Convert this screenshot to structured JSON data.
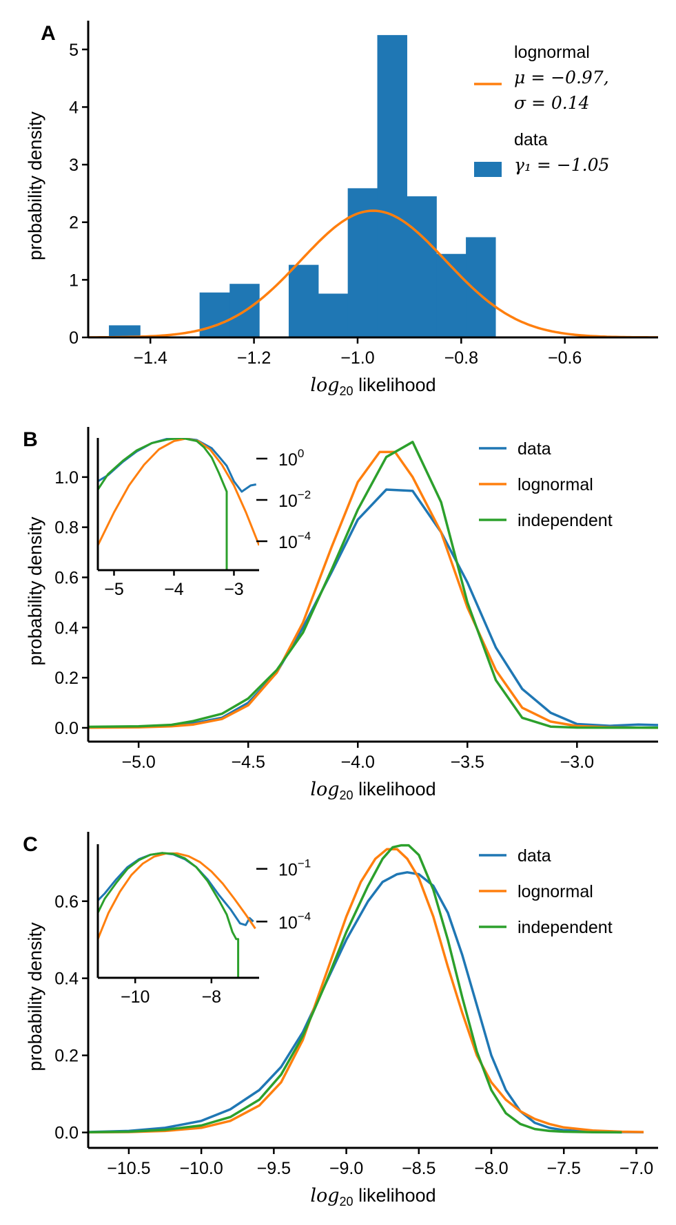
{
  "chart_data": [
    {
      "panel": "A",
      "type": "bar",
      "xlabel_math": "log",
      "xlabel_sub": "20",
      "xlabel_rest": " likelihood",
      "ylabel": "probability density",
      "xlim": [
        -1.52,
        -0.42
      ],
      "ylim": [
        0,
        5.5
      ],
      "xticks": [
        -1.4,
        -1.2,
        -1.0,
        -0.8,
        -0.6
      ],
      "xtick_labels": [
        "−1.4",
        "−1.2",
        "−1.0",
        "−0.8",
        "−0.6"
      ],
      "yticks": [
        0,
        1,
        2,
        3,
        4,
        5
      ],
      "ytick_labels": [
        "0",
        "1",
        "2",
        "3",
        "4",
        "5"
      ],
      "histogram": {
        "name": "data",
        "color": "#1f77b4",
        "bins": [
          {
            "left": -1.48,
            "right": -1.42,
            "value": 0.21
          },
          {
            "left": -1.305,
            "right": -1.247,
            "value": 0.78
          },
          {
            "left": -1.247,
            "right": -1.19,
            "value": 0.93
          },
          {
            "left": -1.133,
            "right": -1.076,
            "value": 1.26
          },
          {
            "left": -1.076,
            "right": -1.019,
            "value": 0.76
          },
          {
            "left": -1.019,
            "right": -0.962,
            "value": 2.59
          },
          {
            "left": -0.962,
            "right": -0.905,
            "value": 5.25
          },
          {
            "left": -0.905,
            "right": -0.848,
            "value": 2.45
          },
          {
            "left": -0.848,
            "right": -0.791,
            "value": 1.45
          },
          {
            "left": -0.791,
            "right": -0.734,
            "value": 1.74
          }
        ]
      },
      "fit": {
        "name": "lognormal",
        "color": "#ff7f0e",
        "mu": -0.97,
        "sigma": 0.14,
        "amplitude": 2.2,
        "x_from": -1.52,
        "x_to": -0.42
      },
      "legend": [
        {
          "kind": "line",
          "color": "#ff7f0e",
          "lines": [
            "lognormal",
            "μ = −0.97,",
            "σ = 0.14"
          ]
        },
        {
          "kind": "patch",
          "color": "#1f77b4",
          "lines": [
            "data",
            "γ₁ = −1.05"
          ]
        }
      ]
    },
    {
      "panel": "B",
      "type": "line",
      "xlabel_math": "log",
      "xlabel_sub": "20",
      "xlabel_rest": " likelihood",
      "ylabel": "probability density",
      "xlim": [
        -5.23,
        -2.63
      ],
      "ylim": [
        -0.055,
        1.2
      ],
      "xticks": [
        -5.0,
        -4.5,
        -4.0,
        -3.5,
        -3.0
      ],
      "xtick_labels": [
        "−5.0",
        "−4.5",
        "−4.0",
        "−3.5",
        "−3.0"
      ],
      "yticks": [
        0.0,
        0.2,
        0.4,
        0.6,
        0.8,
        1.0
      ],
      "ytick_labels": [
        "0.0",
        "0.2",
        "0.4",
        "0.6",
        "0.8",
        "1.0"
      ],
      "series": [
        {
          "name": "data",
          "color": "#1f77b4",
          "x": [
            -5.23,
            -5.0,
            -4.85,
            -4.75,
            -4.62,
            -4.5,
            -4.37,
            -4.25,
            -4.12,
            -4.0,
            -3.87,
            -3.75,
            -3.62,
            -3.5,
            -3.37,
            -3.25,
            -3.12,
            -3.0,
            -2.85,
            -2.72,
            -2.63
          ],
          "y": [
            0.003,
            0.005,
            0.01,
            0.018,
            0.04,
            0.1,
            0.22,
            0.4,
            0.62,
            0.83,
            0.95,
            0.945,
            0.78,
            0.58,
            0.32,
            0.155,
            0.06,
            0.015,
            0.008,
            0.013,
            0.011
          ]
        },
        {
          "name": "lognormal",
          "color": "#ff7f0e",
          "x": [
            -5.23,
            -5.0,
            -4.85,
            -4.75,
            -4.62,
            -4.5,
            -4.37,
            -4.25,
            -4.12,
            -4.0,
            -3.9,
            -3.83,
            -3.75,
            -3.62,
            -3.5,
            -3.37,
            -3.25,
            -3.12,
            -3.0,
            -2.85,
            -2.72,
            -2.63
          ],
          "y": [
            0.0005,
            0.002,
            0.006,
            0.013,
            0.035,
            0.09,
            0.22,
            0.42,
            0.72,
            0.98,
            1.1,
            1.1,
            1.0,
            0.78,
            0.48,
            0.23,
            0.08,
            0.025,
            0.007,
            0.002,
            0.0005,
            0.0003
          ]
        },
        {
          "name": "independent",
          "color": "#2ca02c",
          "x": [
            -5.23,
            -5.0,
            -4.85,
            -4.75,
            -4.62,
            -4.5,
            -4.37,
            -4.25,
            -4.12,
            -4.0,
            -3.87,
            -3.75,
            -3.62,
            -3.5,
            -3.37,
            -3.25,
            -3.12,
            -3.0,
            -2.85,
            -2.72,
            -2.63
          ],
          "y": [
            0.004,
            0.006,
            0.012,
            0.027,
            0.056,
            0.117,
            0.23,
            0.38,
            0.63,
            0.87,
            1.08,
            1.14,
            0.9,
            0.5,
            0.19,
            0.04,
            0.005,
            0.001,
            0.0005,
            0.0005,
            0.0005
          ]
        }
      ],
      "legend": [
        "data",
        "lognormal",
        "independent"
      ],
      "inset": {
        "xlim": [
          -5.27,
          -2.58
        ],
        "ylog_range": [
          -5.4,
          1.0
        ],
        "xticks": [
          -5,
          -4,
          -3
        ],
        "xtick_labels": [
          "−5",
          "−4",
          "−3"
        ],
        "yticks_log": [
          0,
          -2,
          -4
        ],
        "ytick_base": "10",
        "ytick_exponents": [
          "0",
          "−2",
          "−4"
        ],
        "series": [
          {
            "name": "data",
            "color": "#1f77b4",
            "x": [
              -5.27,
              -5.1,
              -4.85,
              -4.62,
              -4.37,
              -4.12,
              -3.87,
              -3.62,
              -3.37,
              -3.25,
              -3.12,
              -3.0,
              -2.87,
              -2.72,
              -2.63
            ],
            "log10y": [
              -1.1,
              -0.8,
              -0.15,
              0.35,
              0.75,
              0.95,
              1.0,
              0.9,
              0.5,
              0.1,
              -0.35,
              -1.1,
              -1.6,
              -1.3,
              -1.25
            ]
          },
          {
            "name": "lognormal",
            "color": "#ff7f0e",
            "x": [
              -5.27,
              -5.0,
              -4.75,
              -4.5,
              -4.25,
              -4.0,
              -3.8,
              -3.6,
              -3.4,
              -3.2,
              -3.0,
              -2.8,
              -2.58
            ],
            "log10y": [
              -4.2,
              -2.6,
              -1.3,
              -0.3,
              0.45,
              0.85,
              0.97,
              0.85,
              0.45,
              -0.3,
              -1.3,
              -2.6,
              -4.2
            ]
          },
          {
            "name": "independent",
            "color": "#2ca02c",
            "x": [
              -5.27,
              -5.1,
              -4.85,
              -4.62,
              -4.37,
              -4.12,
              -3.87,
              -3.62,
              -3.5,
              -3.37,
              -3.25,
              -3.12,
              -3.12
            ],
            "log10y": [
              -1.5,
              -0.75,
              -0.1,
              0.4,
              0.75,
              0.92,
              1.0,
              0.85,
              0.55,
              0.05,
              -0.7,
              -1.6,
              -5.4
            ]
          }
        ]
      }
    },
    {
      "panel": "C",
      "type": "line",
      "xlabel_math": "log",
      "xlabel_sub": "20",
      "xlabel_rest": " likelihood",
      "ylabel": "probability density",
      "xlim": [
        -10.78,
        -6.85
      ],
      "ylim": [
        -0.04,
        0.78
      ],
      "xticks": [
        -10.5,
        -10.0,
        -9.5,
        -9.0,
        -8.5,
        -8.0,
        -7.5,
        -7.0
      ],
      "xtick_labels": [
        "−10.5",
        "−10.0",
        "−9.5",
        "−9.0",
        "−8.5",
        "−8.0",
        "−7.5",
        "−7.0"
      ],
      "yticks": [
        0.0,
        0.2,
        0.4,
        0.6
      ],
      "ytick_labels": [
        "0.0",
        "0.2",
        "0.4",
        "0.6"
      ],
      "series": [
        {
          "name": "data",
          "color": "#1f77b4",
          "x": [
            -10.78,
            -10.5,
            -10.25,
            -10.0,
            -9.8,
            -9.6,
            -9.45,
            -9.3,
            -9.15,
            -9.0,
            -8.85,
            -8.75,
            -8.65,
            -8.58,
            -8.5,
            -8.4,
            -8.3,
            -8.2,
            -8.1,
            -8.0,
            -7.9,
            -7.8,
            -7.7,
            -7.6,
            -7.5,
            -7.3,
            -7.1,
            -6.95
          ],
          "y": [
            0.001,
            0.004,
            0.012,
            0.03,
            0.06,
            0.11,
            0.17,
            0.26,
            0.38,
            0.5,
            0.6,
            0.65,
            0.67,
            0.675,
            0.67,
            0.64,
            0.57,
            0.46,
            0.33,
            0.2,
            0.11,
            0.055,
            0.025,
            0.012,
            0.006,
            0.002,
            0.001,
            0.0005
          ]
        },
        {
          "name": "lognormal",
          "color": "#ff7f0e",
          "x": [
            -10.78,
            -10.5,
            -10.25,
            -10.0,
            -9.8,
            -9.6,
            -9.45,
            -9.3,
            -9.15,
            -9.0,
            -8.9,
            -8.8,
            -8.72,
            -8.65,
            -8.58,
            -8.5,
            -8.4,
            -8.3,
            -8.2,
            -8.1,
            -8.0,
            -7.9,
            -7.8,
            -7.7,
            -7.6,
            -7.5,
            -7.3,
            -7.1,
            -6.95
          ],
          "y": [
            0.0003,
            0.001,
            0.004,
            0.012,
            0.03,
            0.07,
            0.13,
            0.24,
            0.4,
            0.56,
            0.65,
            0.71,
            0.735,
            0.735,
            0.71,
            0.66,
            0.56,
            0.43,
            0.31,
            0.2,
            0.13,
            0.085,
            0.055,
            0.035,
            0.022,
            0.013,
            0.005,
            0.002,
            0.001
          ]
        },
        {
          "name": "independent",
          "color": "#2ca02c",
          "x": [
            -10.78,
            -10.5,
            -10.25,
            -10.0,
            -9.8,
            -9.6,
            -9.45,
            -9.3,
            -9.15,
            -9.0,
            -8.85,
            -8.75,
            -8.68,
            -8.62,
            -8.57,
            -8.5,
            -8.4,
            -8.3,
            -8.2,
            -8.1,
            -8.0,
            -7.9,
            -7.8,
            -7.7,
            -7.6,
            -7.5,
            -7.3,
            -7.15,
            -7.1
          ],
          "y": [
            0.0005,
            0.002,
            0.007,
            0.018,
            0.04,
            0.085,
            0.15,
            0.25,
            0.38,
            0.52,
            0.64,
            0.71,
            0.74,
            0.745,
            0.745,
            0.72,
            0.63,
            0.5,
            0.35,
            0.21,
            0.11,
            0.05,
            0.022,
            0.009,
            0.004,
            0.002,
            0.0005,
            0.0003,
            0.0002
          ]
        }
      ],
      "legend": [
        "data",
        "lognormal",
        "independent"
      ],
      "inset": {
        "xlim": [
          -10.98,
          -6.75
        ],
        "ylog_range": [
          -7.2,
          0.4
        ],
        "xticks": [
          -10,
          -8
        ],
        "xtick_labels": [
          "−10",
          "−8"
        ],
        "yticks_log": [
          -1,
          -4
        ],
        "ytick_base": "10",
        "ytick_exponents": [
          "−1",
          "−4"
        ],
        "series": [
          {
            "name": "data",
            "color": "#1f77b4",
            "x": [
              -10.98,
              -10.8,
              -10.5,
              -10.2,
              -9.9,
              -9.6,
              -9.3,
              -9.0,
              -8.7,
              -8.4,
              -8.1,
              -7.8,
              -7.5,
              -7.25,
              -7.1,
              -7.0,
              -6.9
            ],
            "log10y": [
              -2.8,
              -2.4,
              -1.6,
              -0.9,
              -0.45,
              -0.2,
              -0.1,
              -0.18,
              -0.45,
              -0.9,
              -1.6,
              -2.5,
              -3.3,
              -4.1,
              -4.2,
              -3.8,
              -4.0
            ]
          },
          {
            "name": "lognormal",
            "color": "#ff7f0e",
            "x": [
              -10.98,
              -10.7,
              -10.4,
              -10.1,
              -9.8,
              -9.5,
              -9.2,
              -8.9,
              -8.6,
              -8.3,
              -8.0,
              -7.7,
              -7.4,
              -7.1,
              -6.85
            ],
            "log10y": [
              -5.0,
              -3.5,
              -2.3,
              -1.35,
              -0.7,
              -0.3,
              -0.13,
              -0.12,
              -0.28,
              -0.62,
              -1.15,
              -1.85,
              -2.7,
              -3.6,
              -4.4
            ]
          },
          {
            "name": "independent",
            "color": "#2ca02c",
            "x": [
              -10.98,
              -10.8,
              -10.5,
              -10.2,
              -9.9,
              -9.6,
              -9.3,
              -9.0,
              -8.7,
              -8.4,
              -8.1,
              -7.8,
              -7.6,
              -7.45,
              -7.35,
              -7.3,
              -7.3
            ],
            "log10y": [
              -3.5,
              -2.7,
              -1.8,
              -1.0,
              -0.5,
              -0.2,
              -0.1,
              -0.15,
              -0.4,
              -0.9,
              -1.7,
              -2.8,
              -3.6,
              -4.6,
              -5.0,
              -5.0,
              -7.2
            ]
          }
        ]
      }
    }
  ]
}
